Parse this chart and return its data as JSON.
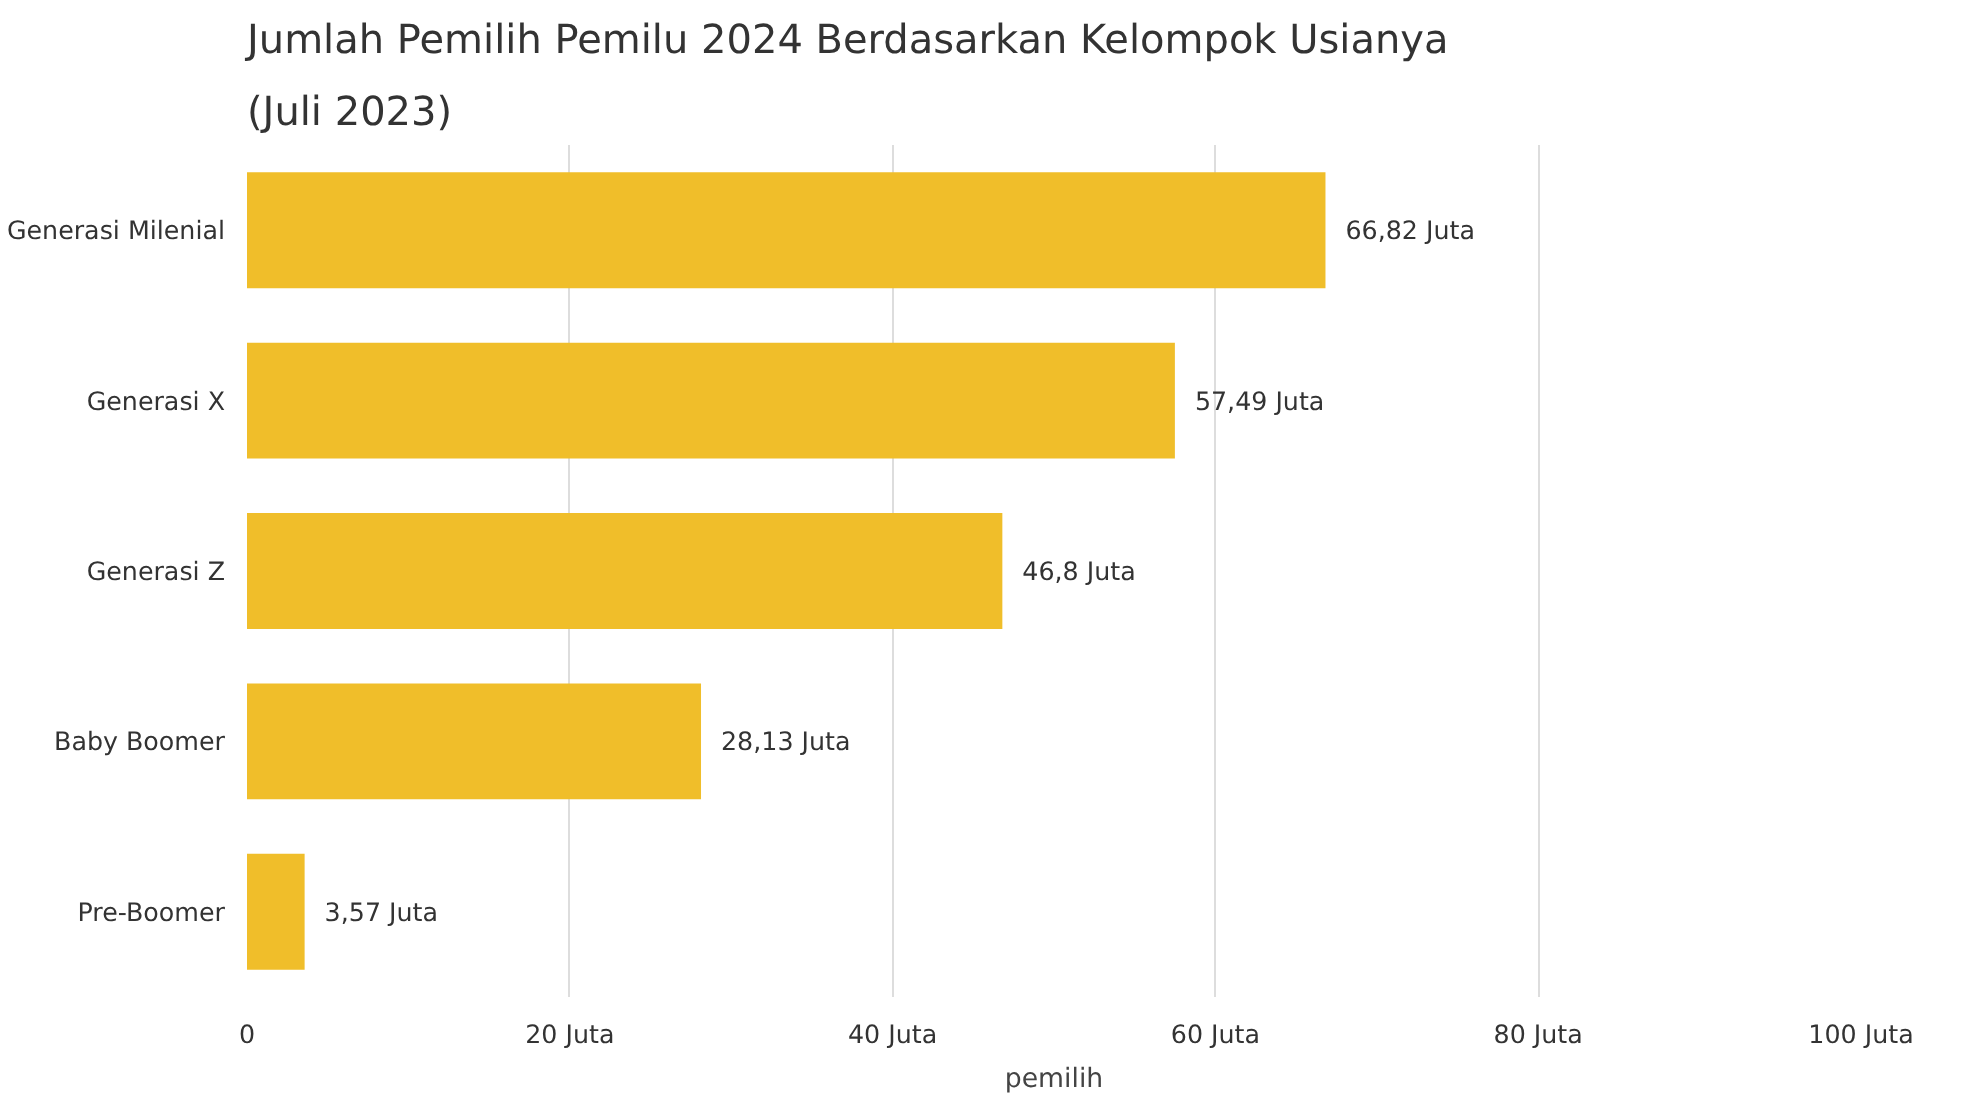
{
  "chart_data": {
    "type": "bar",
    "orientation": "horizontal",
    "title": "Jumlah Pemilih Pemilu 2024 Berdasarkan Kelompok Usianya",
    "subtitle": "(Juli 2023)",
    "xlabel": "pemilih",
    "categories": [
      "Generasi Milenial",
      "Generasi X",
      "Generasi Z",
      "Baby Boomer",
      "Pre-Boomer"
    ],
    "values": [
      66.82,
      57.49,
      46.8,
      28.13,
      3.57
    ],
    "value_labels": [
      "66,82 Juta",
      "57,49 Juta",
      "46,8 Juta",
      "28,13 Juta",
      "3,57 Juta"
    ],
    "color": "#f0be2a",
    "xlim": [
      0,
      100
    ],
    "xticks": [
      0,
      {
        "value": 20,
        "label": "20 Juta"
      },
      {
        "value": 40,
        "label": "40 Juta"
      },
      {
        "value": 60,
        "label": "60 Juta"
      },
      {
        "value": 80,
        "label": "80 Juta"
      },
      {
        "value": 100,
        "label": "100 Juta"
      }
    ],
    "grid": "x"
  }
}
